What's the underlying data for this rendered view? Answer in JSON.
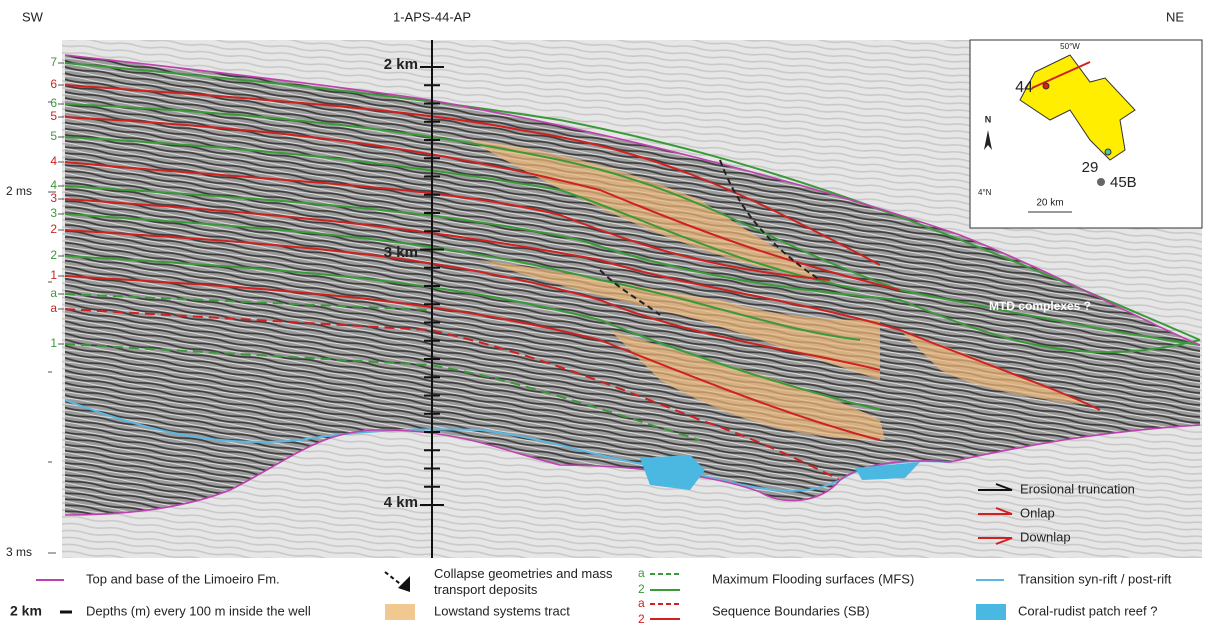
{
  "section": {
    "left_label": "SW",
    "well": "1-APS-44-AP",
    "right_label": "NE",
    "depth_labels": [
      "2 km",
      "3 km",
      "4 km"
    ],
    "time_labels": [
      "2 ms",
      "3 ms"
    ],
    "horizon_labels": [
      {
        "text": "7",
        "color": "#3a9a3a"
      },
      {
        "text": "6",
        "color": "#d02020"
      },
      {
        "text": "6",
        "color": "#3a9a3a"
      },
      {
        "text": "5",
        "color": "#d02020"
      },
      {
        "text": "5",
        "color": "#3a9a3a"
      },
      {
        "text": "4",
        "color": "#d02020"
      },
      {
        "text": "4",
        "color": "#3a9a3a"
      },
      {
        "text": "3",
        "color": "#d02020"
      },
      {
        "text": "3",
        "color": "#3a9a3a"
      },
      {
        "text": "2",
        "color": "#d02020"
      },
      {
        "text": "2",
        "color": "#3a9a3a"
      },
      {
        "text": "1",
        "color": "#d02020"
      },
      {
        "text": "a",
        "color": "#3a9a3a"
      },
      {
        "text": "a",
        "color": "#d02020"
      },
      {
        "text": "1",
        "color": "#3a9a3a"
      }
    ],
    "annotation": "MTD complexes ?"
  },
  "inset": {
    "longitude": "50°W",
    "latitude": "4°N",
    "north": "N",
    "wells": [
      "44",
      "29",
      "45B"
    ],
    "scale": "20 km"
  },
  "key": [
    "Erosional truncation",
    "Onlap",
    "Downlap"
  ],
  "legend": {
    "limoeiro": "Top and base of the Limoeiro Fm.",
    "collapse": "Collapse geometries and mass transport deposits",
    "mfs_a": "a",
    "mfs_2": "2",
    "mfs": "Maximum Flooding surfaces (MFS)",
    "transition": "Transition syn-rift / post-rift",
    "depth_sample": "2 km",
    "depths": "Depths (m) every 100 m inside the well",
    "lst": "Lowstand systems tract",
    "sb_a": "a",
    "sb_2": "2",
    "sb": "Sequence Boundaries (SB)",
    "reef": "Coral-rudist patch reef ?"
  }
}
